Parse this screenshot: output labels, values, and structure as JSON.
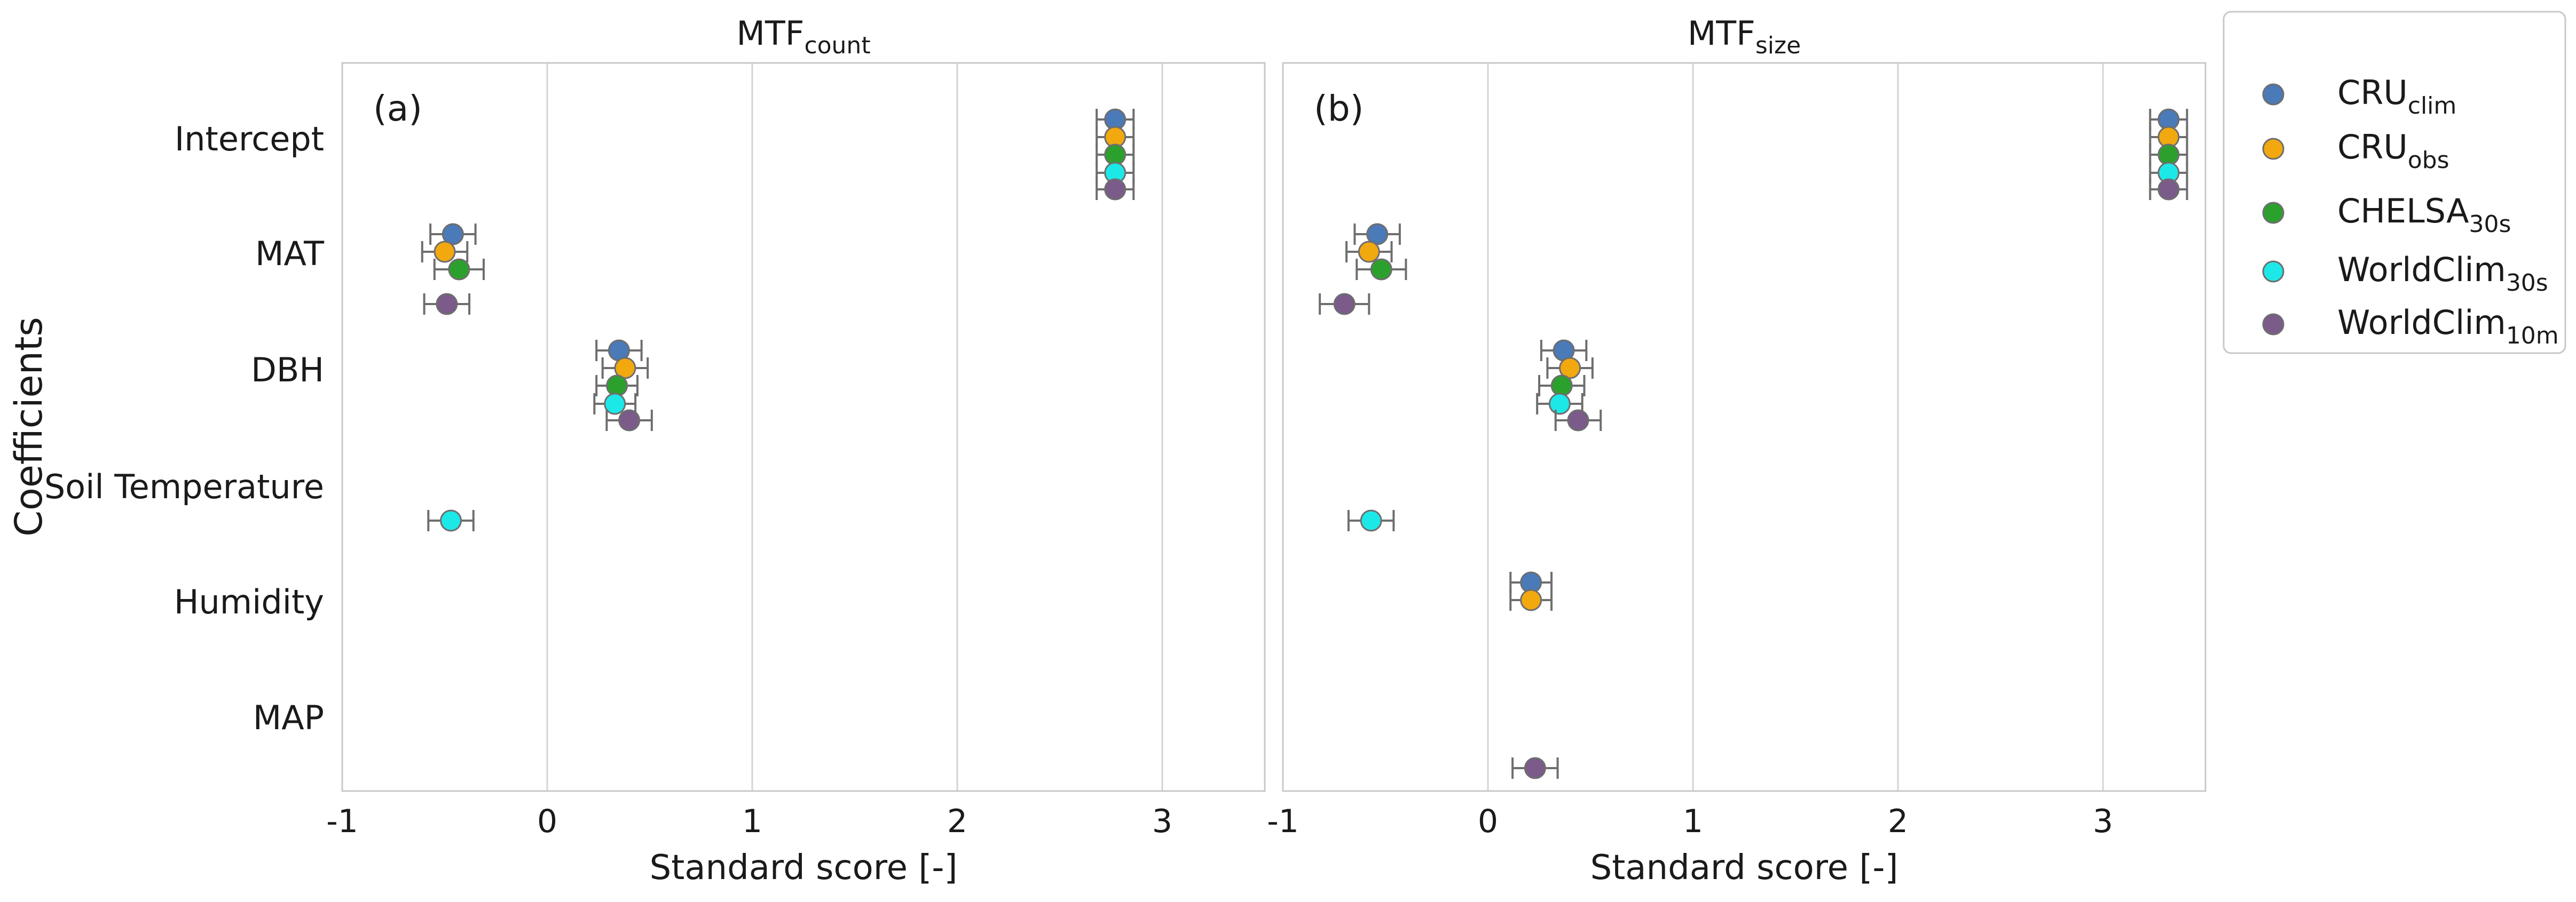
{
  "chart_data": {
    "type": "scatter",
    "ylabel": "Coefficients",
    "categories": [
      "Intercept",
      "MAT",
      "DBH",
      "Soil Temperature",
      "Humidity",
      "MAP"
    ],
    "legend_position": "outside-right",
    "grid": true,
    "series": [
      {
        "key": "cru_clim",
        "name": "CRU",
        "sub": "clim",
        "color": "#4a7ab8"
      },
      {
        "key": "cru_obs",
        "name": "CRU",
        "sub": "obs",
        "color": "#f2a80f"
      },
      {
        "key": "chelsa",
        "name": "CHELSA",
        "sub": "30s",
        "color": "#2ca02c"
      },
      {
        "key": "wc30",
        "name": "WorldClim",
        "sub": "30s",
        "color": "#1de8e8"
      },
      {
        "key": "wc10",
        "name": "WorldClim",
        "sub": "10m",
        "color": "#7b5b8a"
      }
    ],
    "panels": [
      {
        "label": "(a)",
        "title": "MTF",
        "title_sub": "count",
        "xlabel": "Standard score [-]",
        "xlim": [
          -1,
          3.5
        ],
        "xticks": [
          "-1",
          "0",
          "1",
          "2",
          "3"
        ],
        "points": [
          {
            "category": "Intercept",
            "series": "cru_clim",
            "value": 2.77,
            "err": 0.09
          },
          {
            "category": "Intercept",
            "series": "cru_obs",
            "value": 2.77,
            "err": 0.09
          },
          {
            "category": "Intercept",
            "series": "chelsa",
            "value": 2.77,
            "err": 0.09
          },
          {
            "category": "Intercept",
            "series": "wc30",
            "value": 2.77,
            "err": 0.09
          },
          {
            "category": "Intercept",
            "series": "wc10",
            "value": 2.77,
            "err": 0.09
          },
          {
            "category": "MAT",
            "series": "cru_clim",
            "value": -0.46,
            "err": 0.11
          },
          {
            "category": "MAT",
            "series": "cru_obs",
            "value": -0.5,
            "err": 0.11
          },
          {
            "category": "MAT",
            "series": "chelsa",
            "value": -0.43,
            "err": 0.12
          },
          {
            "category": "MAT",
            "series": "wc10",
            "value": -0.49,
            "err": 0.11
          },
          {
            "category": "DBH",
            "series": "cru_clim",
            "value": 0.35,
            "err": 0.11
          },
          {
            "category": "DBH",
            "series": "cru_obs",
            "value": 0.38,
            "err": 0.11
          },
          {
            "category": "DBH",
            "series": "chelsa",
            "value": 0.34,
            "err": 0.1
          },
          {
            "category": "DBH",
            "series": "wc30",
            "value": 0.33,
            "err": 0.1
          },
          {
            "category": "DBH",
            "series": "wc10",
            "value": 0.4,
            "err": 0.11
          },
          {
            "category": "Soil Temperature",
            "series": "wc30",
            "value": -0.47,
            "err": 0.11
          }
        ]
      },
      {
        "label": "(b)",
        "title": "MTF",
        "title_sub": "size",
        "xlabel": "Standard score [-]",
        "xlim": [
          -1,
          3.5
        ],
        "xticks": [
          "-1",
          "0",
          "1",
          "2",
          "3"
        ],
        "points": [
          {
            "category": "Intercept",
            "series": "cru_clim",
            "value": 3.32,
            "err": 0.09
          },
          {
            "category": "Intercept",
            "series": "cru_obs",
            "value": 3.32,
            "err": 0.09
          },
          {
            "category": "Intercept",
            "series": "chelsa",
            "value": 3.32,
            "err": 0.09
          },
          {
            "category": "Intercept",
            "series": "wc30",
            "value": 3.32,
            "err": 0.09
          },
          {
            "category": "Intercept",
            "series": "wc10",
            "value": 3.32,
            "err": 0.09
          },
          {
            "category": "MAT",
            "series": "cru_clim",
            "value": -0.54,
            "err": 0.11
          },
          {
            "category": "MAT",
            "series": "cru_obs",
            "value": -0.58,
            "err": 0.11
          },
          {
            "category": "MAT",
            "series": "chelsa",
            "value": -0.52,
            "err": 0.12
          },
          {
            "category": "MAT",
            "series": "wc10",
            "value": -0.7,
            "err": 0.12
          },
          {
            "category": "DBH",
            "series": "cru_clim",
            "value": 0.37,
            "err": 0.11
          },
          {
            "category": "DBH",
            "series": "cru_obs",
            "value": 0.4,
            "err": 0.11
          },
          {
            "category": "DBH",
            "series": "chelsa",
            "value": 0.36,
            "err": 0.11
          },
          {
            "category": "DBH",
            "series": "wc30",
            "value": 0.35,
            "err": 0.11
          },
          {
            "category": "DBH",
            "series": "wc10",
            "value": 0.44,
            "err": 0.11
          },
          {
            "category": "Soil Temperature",
            "series": "wc30",
            "value": -0.57,
            "err": 0.11
          },
          {
            "category": "Humidity",
            "series": "cru_clim",
            "value": 0.21,
            "err": 0.1
          },
          {
            "category": "Humidity",
            "series": "cru_obs",
            "value": 0.21,
            "err": 0.1
          },
          {
            "category": "MAP",
            "series": "wc10",
            "value": 0.23,
            "err": 0.11
          }
        ]
      }
    ]
  }
}
